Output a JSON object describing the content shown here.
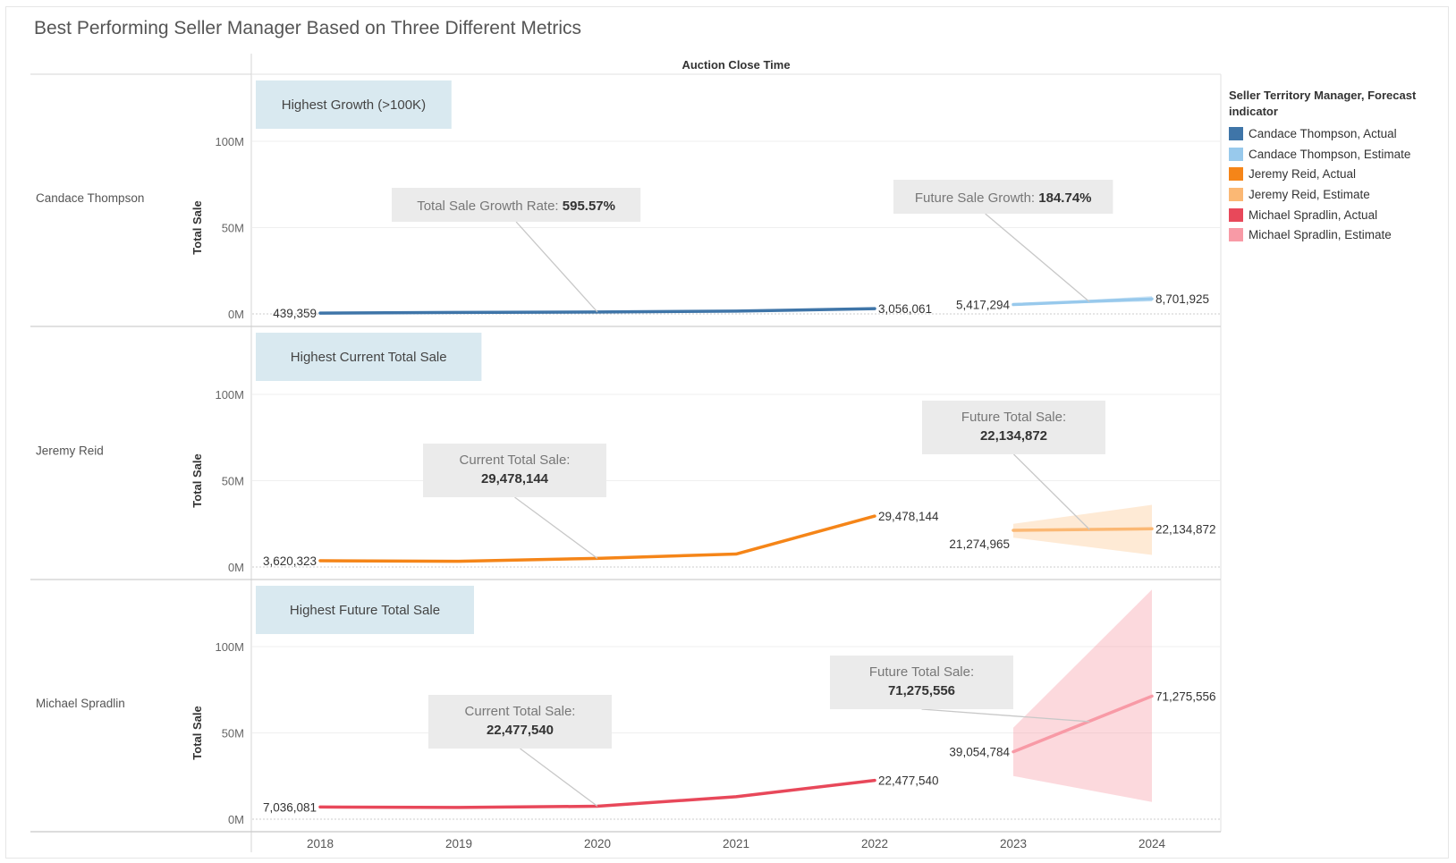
{
  "title": "Best Performing Seller Manager Based on Three Different Metrics",
  "legend": {
    "title": "Seller Territory Manager, Forecast indicator",
    "items": [
      {
        "label": "Candace Thompson, Actual",
        "color": "#3f75a8"
      },
      {
        "label": "Candace Thompson, Estimate",
        "color": "#98c9ec"
      },
      {
        "label": "Jeremy Reid, Actual",
        "color": "#f58518"
      },
      {
        "label": "Jeremy Reid, Estimate",
        "color": "#fbb874"
      },
      {
        "label": "Michael Spradlin, Actual",
        "color": "#e8485a"
      },
      {
        "label": "Michael Spradlin, Estimate",
        "color": "#f89aa6"
      }
    ]
  },
  "chart_data": {
    "type": "line",
    "column_header": "Auction Close Time",
    "x_tick_labels": [
      "2018",
      "2019",
      "2020",
      "2021",
      "2022",
      "2023",
      "2024"
    ],
    "y_axis_title": "Total Sale",
    "y_tick_labels": [
      "0M",
      "50M",
      "100M"
    ],
    "y_ticks": [
      0,
      50000000,
      100000000
    ],
    "ylim": [
      0,
      140000000
    ],
    "grid": true,
    "legend_position": "right",
    "panels": [
      {
        "row_label": "Candace Thompson",
        "badge": "Highest Growth (>100K)",
        "actual_color": "#3f75a8",
        "estimate_color": "#98c9ec",
        "band_opacity": 0.45,
        "actual": {
          "x": [
            2018,
            2019,
            2020,
            2021,
            2022
          ],
          "y": [
            439359,
            850000,
            1100000,
            1600000,
            3056061
          ]
        },
        "estimate": {
          "x": [
            2023,
            2024
          ],
          "y": [
            5417294,
            8701925
          ],
          "upper": [
            5600000,
            10300000
          ],
          "lower": [
            5200000,
            7200000
          ]
        },
        "point_labels": [
          {
            "x": 2018,
            "y": 439359,
            "text": "439,359",
            "side": "left"
          },
          {
            "x": 2022,
            "y": 3056061,
            "text": "3,056,061",
            "side": "right"
          },
          {
            "x": 2023,
            "y": 5417294,
            "text": "5,417,294",
            "side": "left"
          },
          {
            "x": 2024,
            "y": 8701925,
            "text": "8,701,925",
            "side": "right"
          }
        ],
        "annotations": [
          {
            "lead": "Total Sale Growth Rate: ",
            "value": "595.57%",
            "layout": "inline",
            "anchor_x": 2020,
            "anchor_y": 1100000
          },
          {
            "lead": "Future Sale Growth: ",
            "value": "184.74%",
            "layout": "inline",
            "anchor_x": 2023.55,
            "anchor_y": 7000000
          }
        ]
      },
      {
        "row_label": "Jeremy Reid",
        "badge": "Highest Current Total Sale",
        "actual_color": "#f58518",
        "estimate_color": "#fbb874",
        "band_opacity": 0.3,
        "actual": {
          "x": [
            2018,
            2019,
            2020,
            2021,
            2022
          ],
          "y": [
            3620323,
            3300000,
            5000000,
            7500000,
            29478144
          ]
        },
        "estimate": {
          "x": [
            2023,
            2024
          ],
          "y": [
            21274965,
            22134872
          ],
          "upper": [
            25000000,
            36000000
          ],
          "lower": [
            17000000,
            7000000
          ]
        },
        "point_labels": [
          {
            "x": 2018,
            "y": 3620323,
            "text": "3,620,323",
            "side": "left"
          },
          {
            "x": 2022,
            "y": 29478144,
            "text": "29,478,144",
            "side": "right"
          },
          {
            "x": 2023,
            "y": 21274965,
            "text": "21,274,965",
            "side": "below-left"
          },
          {
            "x": 2024,
            "y": 22134872,
            "text": "22,134,872",
            "side": "right"
          }
        ],
        "annotations": [
          {
            "lead": "Current Total Sale:",
            "value": "29,478,144",
            "layout": "stacked",
            "anchor_x": 2020,
            "anchor_y": 5000000
          },
          {
            "lead": "Future Total Sale:",
            "value": "22,134,872",
            "layout": "stacked",
            "anchor_x": 2023.55,
            "anchor_y": 21700000
          }
        ]
      },
      {
        "row_label": "Michael Spradlin",
        "badge": "Highest Future Total Sale",
        "actual_color": "#e8485a",
        "estimate_color": "#f89aa6",
        "band_opacity": 0.38,
        "actual": {
          "x": [
            2018,
            2019,
            2020,
            2021,
            2022
          ],
          "y": [
            7036081,
            6800000,
            7500000,
            13000000,
            22477540
          ]
        },
        "estimate": {
          "x": [
            2023,
            2024
          ],
          "y": [
            39054784,
            71275556
          ],
          "upper": [
            53000000,
            133000000
          ],
          "lower": [
            25000000,
            10000000
          ]
        },
        "point_labels": [
          {
            "x": 2018,
            "y": 7036081,
            "text": "7,036,081",
            "side": "left"
          },
          {
            "x": 2022,
            "y": 22477540,
            "text": "22,477,540",
            "side": "right"
          },
          {
            "x": 2023,
            "y": 39054784,
            "text": "39,054,784",
            "side": "left"
          },
          {
            "x": 2024,
            "y": 71275556,
            "text": "71,275,556",
            "side": "right"
          }
        ],
        "annotations": [
          {
            "lead": "Current Total Sale:",
            "value": "22,477,540",
            "layout": "stacked",
            "anchor_x": 2020,
            "anchor_y": 7500000
          },
          {
            "lead": "Future Total Sale:",
            "value": "71,275,556",
            "layout": "stacked",
            "anchor_x": 2023.55,
            "anchor_y": 56500000
          }
        ]
      }
    ]
  }
}
